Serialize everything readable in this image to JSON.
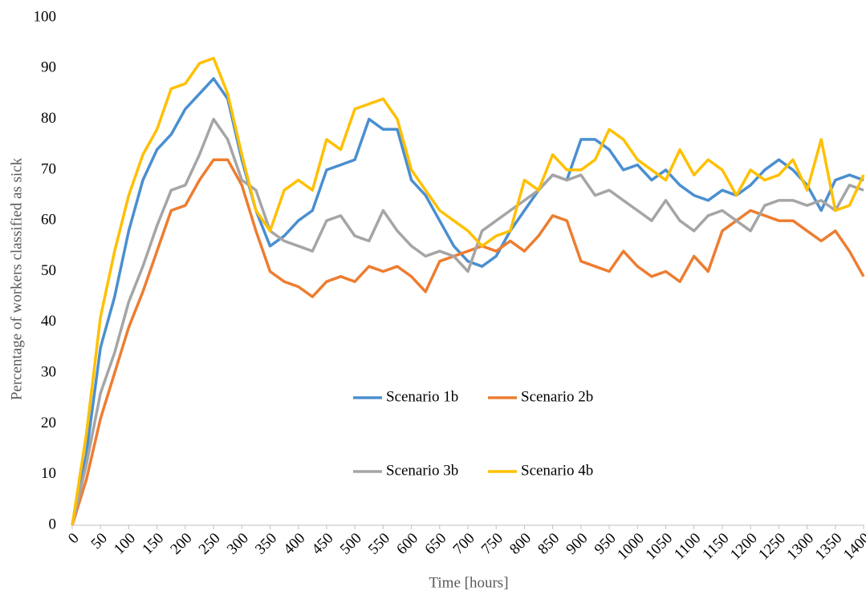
{
  "chart_data": {
    "type": "line",
    "x_label": "Time [hours]",
    "y_label": "Percentage of workers classified as sick",
    "x": [
      0,
      25,
      50,
      75,
      100,
      125,
      150,
      175,
      200,
      225,
      250,
      275,
      300,
      325,
      350,
      375,
      400,
      425,
      450,
      475,
      500,
      525,
      550,
      575,
      600,
      625,
      650,
      675,
      700,
      725,
      750,
      775,
      800,
      825,
      850,
      875,
      900,
      925,
      950,
      975,
      1000,
      1025,
      1050,
      1075,
      1100,
      1125,
      1150,
      1175,
      1200,
      1225,
      1250,
      1275,
      1300,
      1325,
      1350,
      1375,
      1400
    ],
    "series": [
      {
        "name": "Scenario 1b",
        "color": "#4a8fd0",
        "values": [
          0,
          14,
          35,
          45,
          58,
          68,
          74,
          77,
          82,
          85,
          88,
          84,
          72,
          62,
          55,
          57,
          60,
          62,
          70,
          71,
          72,
          80,
          78,
          78,
          68,
          65,
          60,
          55,
          52,
          51,
          53,
          58,
          62,
          66,
          69,
          68,
          76,
          76,
          74,
          70,
          71,
          68,
          70,
          67,
          65,
          64,
          66,
          65,
          67,
          70,
          72,
          70,
          67,
          62,
          68,
          69,
          68
        ]
      },
      {
        "name": "Scenario 2b",
        "color": "#ed7d31",
        "values": [
          0,
          9,
          21,
          30,
          39,
          46,
          54,
          62,
          63,
          68,
          72,
          72,
          67,
          58,
          50,
          48,
          47,
          45,
          48,
          49,
          48,
          51,
          50,
          51,
          49,
          46,
          52,
          53,
          54,
          55,
          54,
          56,
          54,
          57,
          61,
          60,
          52,
          51,
          50,
          54,
          51,
          49,
          50,
          48,
          53,
          50,
          58,
          60,
          62,
          61,
          60,
          60,
          58,
          56,
          58,
          54,
          49
        ]
      },
      {
        "name": "Scenario 3b",
        "color": "#a5a5a5",
        "values": [
          0,
          12,
          26,
          34,
          44,
          51,
          59,
          66,
          67,
          73,
          80,
          76,
          68,
          66,
          58,
          56,
          55,
          54,
          60,
          61,
          57,
          56,
          62,
          58,
          55,
          53,
          54,
          53,
          50,
          58,
          60,
          62,
          64,
          66,
          69,
          68,
          69,
          65,
          66,
          64,
          62,
          60,
          64,
          60,
          58,
          61,
          62,
          60,
          58,
          63,
          64,
          64,
          63,
          64,
          62,
          67,
          66
        ]
      },
      {
        "name": "Scenario 4b",
        "color": "#ffc000",
        "values": [
          0,
          18,
          41,
          54,
          65,
          73,
          78,
          86,
          87,
          91,
          92,
          85,
          73,
          62,
          58,
          66,
          68,
          66,
          76,
          74,
          82,
          83,
          84,
          80,
          70,
          66,
          62,
          60,
          58,
          55,
          57,
          58,
          68,
          66,
          73,
          70,
          70,
          72,
          78,
          76,
          72,
          70,
          68,
          74,
          69,
          72,
          70,
          65,
          70,
          68,
          69,
          72,
          66,
          76,
          62,
          63,
          69
        ]
      }
    ],
    "xlim": [
      0,
      1400
    ],
    "xticks": [
      0,
      50,
      100,
      150,
      200,
      250,
      300,
      350,
      400,
      450,
      500,
      550,
      600,
      650,
      700,
      750,
      800,
      850,
      900,
      950,
      1000,
      1050,
      1100,
      1150,
      1200,
      1250,
      1300,
      1350,
      1400
    ],
    "ylim": [
      0,
      100
    ],
    "yticks": [
      0,
      10,
      20,
      30,
      40,
      50,
      60,
      70,
      80,
      90,
      100
    ],
    "grid": false,
    "legend": "center"
  }
}
